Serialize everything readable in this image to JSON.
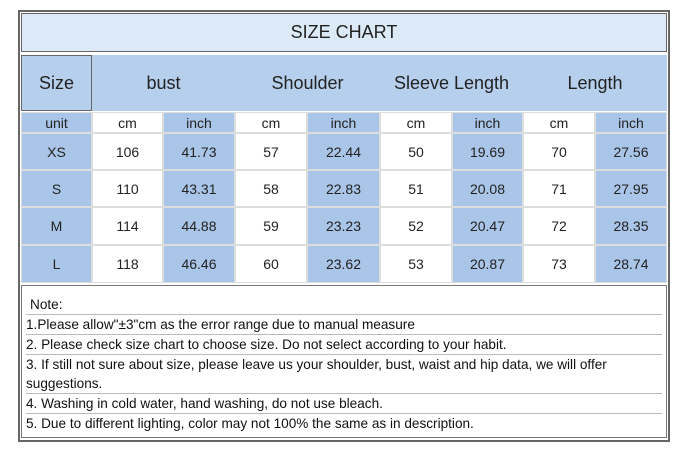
{
  "title": "SIZE CHART",
  "header": [
    "Size",
    "bust",
    "Shoulder",
    "Sleeve Length",
    "Length"
  ],
  "units": [
    "unit",
    "cm",
    "inch",
    "cm",
    "inch",
    "cm",
    "inch",
    "cm",
    "inch"
  ],
  "rows": [
    [
      "XS",
      106,
      41.73,
      57,
      22.44,
      50,
      19.69,
      70,
      27.56
    ],
    [
      "S",
      110,
      43.31,
      58,
      22.83,
      51,
      20.08,
      71,
      27.95
    ],
    [
      "M",
      114,
      44.88,
      59,
      23.23,
      52,
      20.47,
      72,
      28.35
    ],
    [
      "L",
      118,
      46.46,
      60,
      23.62,
      53,
      20.87,
      73,
      28.74
    ]
  ],
  "notes": [
    "Note:",
    "1.Please allow\"±3\"cm as the error range due to manual measure",
    "2. Please check size chart to choose size. Do not select according to your habit.",
    "3. If still not sure about size, please leave us your shoulder, bust, waist and hip data, we will offer suggestions.",
    "4. Washing in cold water, hand washing, do not use bleach.",
    "5. Due to different lighting, color may not 100% the same as in description."
  ]
}
